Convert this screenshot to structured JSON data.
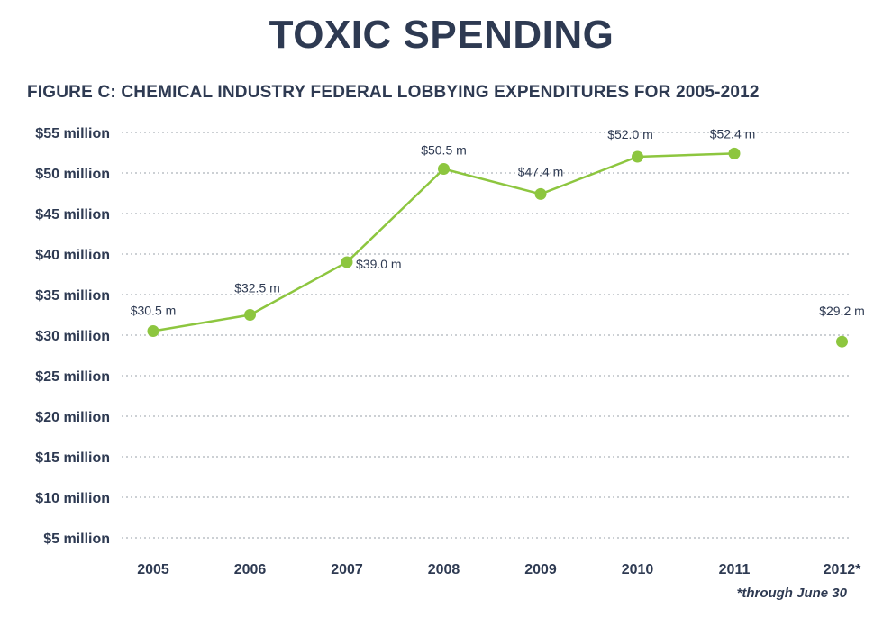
{
  "chart_data": {
    "type": "line",
    "title": "TOXIC SPENDING",
    "subtitle": "FIGURE C: CHEMICAL INDUSTRY FEDERAL LOBBYING EXPENDITURES FOR 2005-2012",
    "categories": [
      "2005",
      "2006",
      "2007",
      "2008",
      "2009",
      "2010",
      "2011",
      "2012*"
    ],
    "series": [
      {
        "values": [
          30.5,
          32.5,
          39.0,
          50.5,
          47.4,
          52.0,
          52.4,
          29.2
        ],
        "labels": [
          "$30.5 m",
          "$32.5 m",
          "$39.0 m",
          "$50.5 m",
          "$47.4 m",
          "$52.0 m",
          "$52.4 m",
          "$29.2 m"
        ],
        "connected_through_index": 6,
        "color": "#8dc63f"
      }
    ],
    "yticks": [
      5,
      10,
      15,
      20,
      25,
      30,
      35,
      40,
      45,
      50,
      55
    ],
    "ytick_labels": [
      "$5 million",
      "$10 million",
      "$15 million",
      "$20 million",
      "$25 million",
      "$30 million",
      "$35 million",
      "$40 million",
      "$45 million",
      "$50 million",
      "$55 million"
    ],
    "ylim": [
      5,
      55
    ],
    "xlabel": "",
    "ylabel": "",
    "grid": true,
    "footnote": "*through June 30"
  }
}
